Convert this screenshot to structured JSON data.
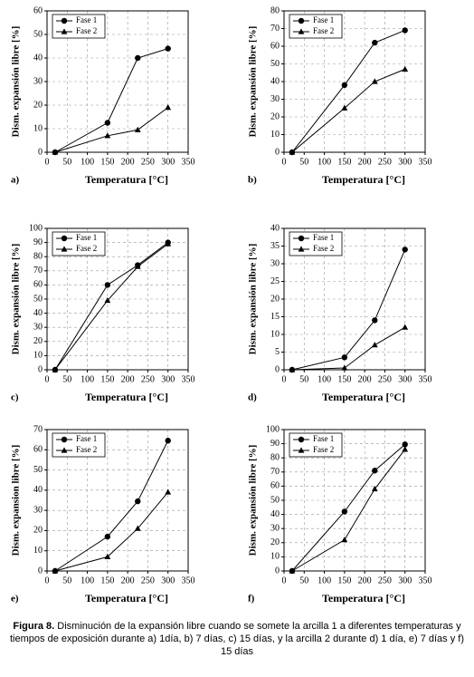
{
  "chart_data": [
    {
      "type": "line",
      "panel_label": "a)",
      "xlabel": "Temperatura [°C]",
      "ylabel": "Dism. expansión libre [%]",
      "x": [
        20,
        150,
        225,
        300
      ],
      "xlim": [
        0,
        350
      ],
      "xticks": [
        0,
        50,
        100,
        150,
        200,
        250,
        300,
        350
      ],
      "ylim": [
        0,
        60
      ],
      "yticks": [
        0,
        10,
        20,
        30,
        40,
        50,
        60
      ],
      "grid": true,
      "legend": "upper left",
      "series": [
        {
          "name": "Fase 1",
          "color": "#000000",
          "marker": "circle",
          "values": [
            0,
            12.5,
            40,
            44
          ]
        },
        {
          "name": "Fase 2",
          "color": "#000000",
          "marker": "triangle",
          "values": [
            0,
            7,
            9.5,
            19
          ]
        }
      ]
    },
    {
      "type": "line",
      "panel_label": "b)",
      "xlabel": "Temperatura [°C]",
      "ylabel": "Dism. expansión libre [%]",
      "x": [
        20,
        150,
        225,
        300
      ],
      "xlim": [
        0,
        350
      ],
      "xticks": [
        0,
        50,
        100,
        150,
        200,
        250,
        300,
        350
      ],
      "ylim": [
        0,
        80
      ],
      "yticks": [
        0,
        10,
        20,
        30,
        40,
        50,
        60,
        70,
        80
      ],
      "grid": true,
      "legend": "upper left",
      "series": [
        {
          "name": "Fase 1",
          "color": "#000000",
          "marker": "circle",
          "values": [
            0,
            38,
            62,
            69
          ]
        },
        {
          "name": "Fase 2",
          "color": "#000000",
          "marker": "triangle",
          "values": [
            0,
            25,
            40,
            47
          ]
        }
      ]
    },
    {
      "type": "line",
      "panel_label": "c)",
      "xlabel": "Temperatura [°C]",
      "ylabel": "Dism. expansión libre [%]",
      "x": [
        20,
        150,
        225,
        300
      ],
      "xlim": [
        0,
        350
      ],
      "xticks": [
        0,
        50,
        100,
        150,
        200,
        250,
        300,
        350
      ],
      "ylim": [
        0,
        100
      ],
      "yticks": [
        0,
        10,
        20,
        30,
        40,
        50,
        60,
        70,
        80,
        90,
        100
      ],
      "grid": true,
      "legend": "upper left",
      "series": [
        {
          "name": "Fase 1",
          "color": "#000000",
          "marker": "circle",
          "values": [
            0,
            60,
            74,
            90
          ]
        },
        {
          "name": "Fase 2",
          "color": "#000000",
          "marker": "triangle",
          "values": [
            0,
            49,
            73,
            89
          ]
        }
      ]
    },
    {
      "type": "line",
      "panel_label": "d)",
      "xlabel": "Temperatura [°C]",
      "ylabel": "Dism. expansión libre [%]",
      "x": [
        20,
        150,
        225,
        300
      ],
      "xlim": [
        0,
        350
      ],
      "xticks": [
        0,
        50,
        100,
        150,
        200,
        250,
        300,
        350
      ],
      "ylim": [
        0,
        40
      ],
      "yticks": [
        0,
        5,
        10,
        15,
        20,
        25,
        30,
        35,
        40
      ],
      "grid": true,
      "legend": "upper left",
      "series": [
        {
          "name": "Fase 1",
          "color": "#000000",
          "marker": "circle",
          "values": [
            0,
            3.5,
            14,
            34
          ]
        },
        {
          "name": "Fase 2",
          "color": "#000000",
          "marker": "triangle",
          "values": [
            0,
            0.5,
            7,
            12
          ]
        }
      ]
    },
    {
      "type": "line",
      "panel_label": "e)",
      "xlabel": "Temperatura [°C]",
      "ylabel": "Dism. expansion libre [%]",
      "x": [
        20,
        150,
        225,
        300
      ],
      "xlim": [
        0,
        350
      ],
      "xticks": [
        0,
        50,
        100,
        150,
        200,
        250,
        300,
        350
      ],
      "ylim": [
        0,
        70
      ],
      "yticks": [
        0,
        10,
        20,
        30,
        40,
        50,
        60,
        70
      ],
      "grid": true,
      "legend": "upper left",
      "series": [
        {
          "name": "Fase 1",
          "color": "#000000",
          "marker": "circle",
          "values": [
            0,
            17,
            34.5,
            64.5
          ]
        },
        {
          "name": "Fase 2",
          "color": "#000000",
          "marker": "triangle",
          "values": [
            0,
            7,
            21,
            39
          ]
        }
      ]
    },
    {
      "type": "line",
      "panel_label": "f)",
      "xlabel": "Temperatura [°C]",
      "ylabel": "Dism. expansión libre [%]",
      "x": [
        20,
        150,
        225,
        300
      ],
      "xlim": [
        0,
        350
      ],
      "xticks": [
        0,
        50,
        100,
        150,
        200,
        250,
        300,
        350
      ],
      "ylim": [
        0,
        100
      ],
      "yticks": [
        0,
        10,
        20,
        30,
        40,
        50,
        60,
        70,
        80,
        90,
        100
      ],
      "grid": true,
      "legend": "upper left",
      "series": [
        {
          "name": "Fase 1",
          "color": "#000000",
          "marker": "circle",
          "values": [
            0,
            42,
            71,
            89.5
          ]
        },
        {
          "name": "Fase 2",
          "color": "#000000",
          "marker": "triangle",
          "values": [
            0,
            22,
            58,
            86
          ]
        }
      ]
    }
  ],
  "caption": {
    "label": "Figura 8.",
    "text": "Disminución de la expansión libre cuando se somete la arcilla 1 a diferentes temperaturas y tiempos de exposición durante a) 1día, b) 7 días, c) 15 días, y la arcilla 2 durante d) 1 día, e) 7 días y f) 15 días"
  }
}
